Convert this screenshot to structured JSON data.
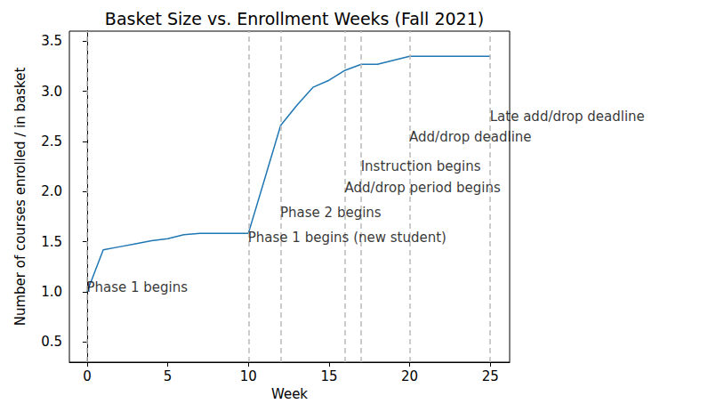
{
  "chart_data": {
    "type": "line",
    "title": "Basket Size vs. Enrollment Weeks (Fall 2021)",
    "x_label": "Week",
    "y_label": "Number of courses enrolled / in basket",
    "x": [
      0,
      1,
      2,
      3,
      4,
      5,
      6,
      7,
      8,
      9,
      10,
      11,
      12,
      13,
      14,
      15,
      16,
      17,
      18,
      19,
      20,
      21,
      22,
      23,
      24,
      25
    ],
    "values": [
      1.0,
      1.42,
      1.45,
      1.48,
      1.51,
      1.53,
      1.57,
      1.585,
      1.585,
      1.585,
      1.585,
      2.12,
      2.66,
      2.86,
      3.04,
      3.11,
      3.21,
      3.27,
      3.27,
      3.31,
      3.35,
      3.35,
      3.35,
      3.35,
      3.35,
      3.35
    ],
    "color": "#1f77b4",
    "xlim": [
      -1.1,
      26.2
    ],
    "xticks": [
      0,
      5,
      10,
      15,
      20,
      25
    ],
    "ylim": [
      0.3,
      3.6
    ],
    "yticks": [
      {
        "value": 0.5,
        "label": "0.5"
      },
      {
        "value": 1.0,
        "label": "1.0"
      },
      {
        "value": 1.5,
        "label": "1.5"
      },
      {
        "value": 2.0,
        "label": "2.0"
      },
      {
        "value": 2.5,
        "label": "2.5"
      },
      {
        "value": 3.0,
        "label": "3.0"
      },
      {
        "value": 3.5,
        "label": "3.5"
      }
    ],
    "grid": false,
    "annotations": [
      {
        "text": "Phase 1 begins",
        "x": 0,
        "y": 0.97
      },
      {
        "text": "Phase 1 begins (new student)",
        "x": 10,
        "y": 1.47
      },
      {
        "text": "Phase 2 begins",
        "x": 12,
        "y": 1.72
      },
      {
        "text": "Add/drop period begins",
        "x": 16,
        "y": 1.97
      },
      {
        "text": "Instruction begins",
        "x": 17,
        "y": 2.18
      },
      {
        "text": "Add/drop deadline",
        "x": 20,
        "y": 2.47
      },
      {
        "text": "Late add/drop deadline",
        "x": 25,
        "y": 2.68
      }
    ]
  }
}
